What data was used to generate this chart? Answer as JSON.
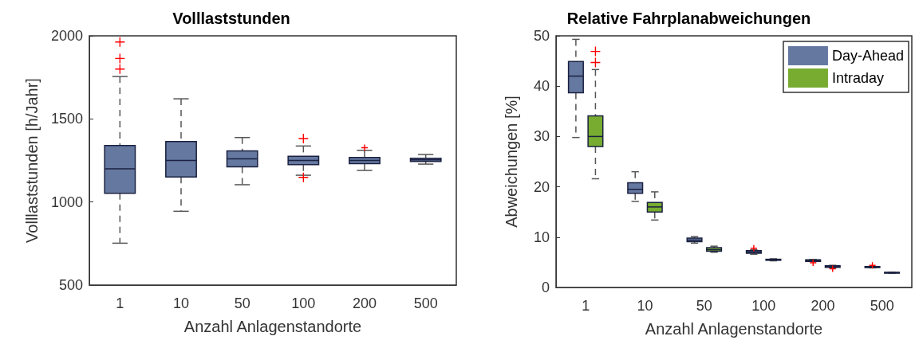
{
  "chart_data": [
    {
      "type": "box",
      "title": "Volllaststunden",
      "xlabel": "Anzahl Anlagenstandorte",
      "ylabel": "Volllaststunden [h/Jahr]",
      "categories": [
        "1",
        "10",
        "50",
        "100",
        "200",
        "500"
      ],
      "color": "#6578a0",
      "ylim": [
        500,
        2000
      ],
      "yticks": [
        500,
        1000,
        1500,
        2000
      ],
      "grid": false,
      "legend": false,
      "boxes": [
        {
          "low": 752,
          "q1": 1052,
          "median": 1200,
          "q3": 1340,
          "high": 1755,
          "outliers": [
            1963,
            1864,
            1800
          ]
        },
        {
          "low": 944,
          "q1": 1150,
          "median": 1250,
          "q3": 1364,
          "high": 1621
        },
        {
          "low": 1104,
          "q1": 1212,
          "median": 1260,
          "q3": 1308,
          "high": 1388
        },
        {
          "low": 1161,
          "q1": 1225,
          "median": 1250,
          "q3": 1275,
          "high": 1337,
          "outliers": [
            1382,
            1148
          ]
        },
        {
          "low": 1190,
          "q1": 1231,
          "median": 1250,
          "q3": 1268,
          "high": 1311,
          "outliers": [
            1327
          ]
        },
        {
          "low": 1228,
          "q1": 1244,
          "median": 1253,
          "q3": 1263,
          "high": 1286
        }
      ]
    },
    {
      "type": "box",
      "title": "Relative Fahrplanabweichungen",
      "xlabel": "Anzahl Anlagenstandorte",
      "ylabel": "Abweichungen [%]",
      "categories": [
        "1",
        "10",
        "50",
        "100",
        "200",
        "500"
      ],
      "ylim": [
        0,
        50
      ],
      "yticks": [
        0,
        10,
        20,
        30,
        40,
        50
      ],
      "grid": false,
      "legend": "top right",
      "series": [
        {
          "name": "Day-Ahead",
          "color": "#6578a0",
          "boxes": [
            {
              "low": 29.8,
              "q1": 38.7,
              "median": 42,
              "q3": 44.9,
              "high": 49.3
            },
            {
              "low": 17.1,
              "q1": 18.7,
              "median": 19.5,
              "q3": 20.8,
              "high": 23.0
            },
            {
              "low": 8.8,
              "q1": 9.1,
              "median": 9.4,
              "q3": 9.8,
              "high": 10.1
            },
            {
              "low": 6.6,
              "q1": 6.8,
              "median": 7.05,
              "q3": 7.3,
              "high": 7.5,
              "outliers": [
                7.8
              ]
            },
            {
              "low": 5.15,
              "q1": 5.2,
              "median": 5.35,
              "q3": 5.5,
              "high": 5.55,
              "outliers": [
                4.9
              ]
            },
            {
              "low": 3.9,
              "q1": 3.95,
              "median": 4.05,
              "q3": 4.15,
              "high": 4.2,
              "outliers": [
                4.4
              ]
            }
          ]
        },
        {
          "name": "Intraday",
          "color": "#77ac30",
          "boxes": [
            {
              "low": 21.6,
              "q1": 28.0,
              "median": 30,
              "q3": 34.1,
              "high": 43.3,
              "outliers": [
                46.9,
                44.7
              ]
            },
            {
              "low": 13.4,
              "q1": 15.0,
              "median": 16,
              "q3": 16.9,
              "high": 19.0
            },
            {
              "low": 7.0,
              "q1": 7.2,
              "median": 7.5,
              "q3": 7.9,
              "high": 8.2
            },
            {
              "low": 5.3,
              "q1": 5.4,
              "median": 5.5,
              "q3": 5.6,
              "high": 5.7
            },
            {
              "low": 3.9,
              "q1": 4.0,
              "median": 4.15,
              "q3": 4.3,
              "high": 4.4,
              "outliers": [
                3.7
              ]
            },
            {
              "low": 2.85,
              "q1": 2.9,
              "median": 2.95,
              "q3": 3.0,
              "high": 3.05
            }
          ]
        }
      ]
    }
  ]
}
